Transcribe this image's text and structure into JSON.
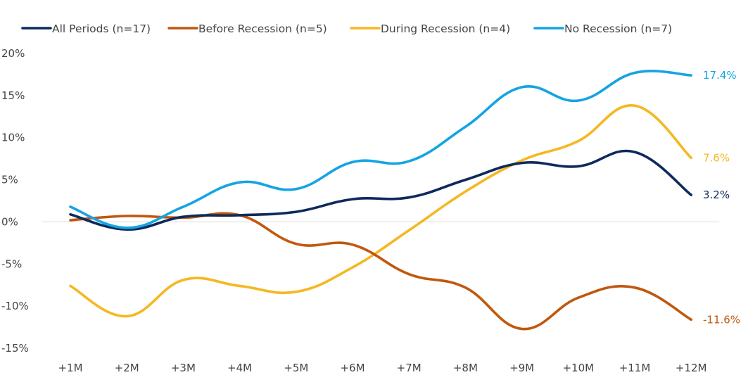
{
  "chart_data": {
    "type": "line",
    "title": "",
    "xlabel": "",
    "ylabel": "",
    "categories": [
      "+1M",
      "+2M",
      "+3M",
      "+4M",
      "+5M",
      "+6M",
      "+7M",
      "+8M",
      "+9M",
      "+10M",
      "+11M",
      "+12M"
    ],
    "yticks": [
      "20%",
      "15%",
      "10%",
      "5%",
      "0%",
      "-5%",
      "-10%",
      "-15%"
    ],
    "ylim": [
      -15,
      20
    ],
    "grid": false,
    "legend_position": "top",
    "series": [
      {
        "name": "All Periods (n=17)",
        "color": "#0d2a5c",
        "values": [
          0.9,
          -0.9,
          0.6,
          0.8,
          1.2,
          2.7,
          2.9,
          5.0,
          7.0,
          6.6,
          8.3,
          3.2
        ],
        "end_label": "3.2%"
      },
      {
        "name": "Before Recession (n=5)",
        "color": "#c0580e",
        "values": [
          0.2,
          0.7,
          0.5,
          0.8,
          -2.6,
          -2.7,
          -6.2,
          -7.8,
          -12.7,
          -9.0,
          -7.8,
          -11.6
        ],
        "end_label": "-11.6%"
      },
      {
        "name": "During Recession (n=4)",
        "color": "#f5b821",
        "values": [
          -7.6,
          -11.2,
          -6.9,
          -7.6,
          -8.3,
          -5.4,
          -1.0,
          3.6,
          7.3,
          9.6,
          13.8,
          7.6
        ],
        "end_label": "7.6%"
      },
      {
        "name": "No Recession (n=7)",
        "color": "#14a4e3",
        "values": [
          1.8,
          -0.7,
          1.8,
          4.7,
          3.9,
          7.1,
          7.2,
          11.3,
          16.0,
          14.4,
          17.7,
          17.4
        ],
        "end_label": "17.4%"
      }
    ]
  }
}
